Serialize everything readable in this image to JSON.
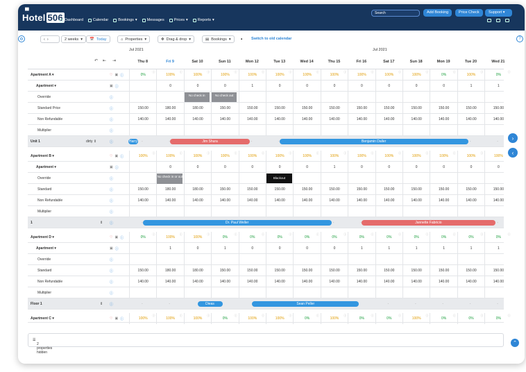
{
  "nav": {
    "logo_text": "Hotel",
    "logo_num": "506",
    "items": [
      "Dashboard",
      "Calendar",
      "Bookings",
      "Messages",
      "Prices",
      "Reports"
    ],
    "search_placeholder": "Search",
    "add_booking": "Add Booking",
    "price_check": "Price Check",
    "support": "Support"
  },
  "toolbar": {
    "weeks": "2 weeks",
    "today": "Today",
    "properties": "Properties",
    "drag": "Drag & drop",
    "bookings": "Bookings",
    "switch_link": "Switch to old calendar"
  },
  "months": [
    "Jul 2021",
    "Jul 2021"
  ],
  "days": [
    "Thu 8",
    "Fri 9",
    "Sat 10",
    "Sun 11",
    "Mon 12",
    "Tue 13",
    "Wed 14",
    "Thu 15",
    "Fri 16",
    "Sat 17",
    "Sun 18",
    "Mon 19",
    "Tue 20",
    "Wed 21"
  ],
  "apartmentA": {
    "title": "Apartment A",
    "occupancy": [
      "0%",
      "100%",
      "100%",
      "100%",
      "100%",
      "100%",
      "100%",
      "100%",
      "100%",
      "100%",
      "100%",
      "0%",
      "100%",
      "0%"
    ],
    "sub": "Apartment",
    "avail": [
      "",
      "0",
      "0",
      "0",
      "1",
      "0",
      "0",
      "0",
      "0",
      "0",
      "0",
      "0",
      "1",
      "1"
    ],
    "override_label": "Override",
    "override_tags": [
      "No check in",
      "No check out"
    ],
    "price_label": "Standard Price",
    "prices": [
      "150.00",
      "180.00",
      "180.00",
      "150.00",
      "150.00",
      "150.00",
      "150.00",
      "150.00",
      "150.00",
      "150.00",
      "150.00",
      "150.00",
      "150.00",
      "150.00"
    ],
    "nr_label": "Non Refundable",
    "nr": [
      "140.00",
      "140.00",
      "140.00",
      "140.00",
      "140.00",
      "140.00",
      "140.00",
      "140.00",
      "140.00",
      "140.00",
      "140.00",
      "140.00",
      "140.00",
      "140.00"
    ],
    "mult_label": "Multiplier",
    "unit_label": "Unit 1",
    "unit_status": "dirty",
    "bookings": [
      "Harry",
      "Jim Shura",
      "Benjamin Daller"
    ]
  },
  "apartmentB": {
    "title": "Apartment B",
    "occupancy": [
      "100%",
      "100%",
      "100%",
      "100%",
      "100%",
      "100%",
      "100%",
      "100%",
      "100%",
      "100%",
      "100%",
      "100%",
      "100%",
      "100%"
    ],
    "sub": "Apartment",
    "avail": [
      "",
      "0",
      "0",
      "0",
      "0",
      "0",
      "0",
      "1",
      "0",
      "0",
      "0",
      "0",
      "0",
      "0"
    ],
    "override_label": "Override",
    "override_tag": "No check in or out",
    "blackout": "Blackout",
    "price_label": "Standard",
    "prices": [
      "150.00",
      "180.00",
      "180.00",
      "150.00",
      "150.00",
      "150.00",
      "150.00",
      "150.00",
      "150.00",
      "150.00",
      "150.00",
      "150.00",
      "150.00",
      "150.00"
    ],
    "nr_label": "Non Refundable",
    "nr": [
      "140.00",
      "140.00",
      "140.00",
      "140.00",
      "140.00",
      "140.00",
      "140.00",
      "140.00",
      "140.00",
      "140.00",
      "140.00",
      "140.00",
      "140.00",
      "140.00"
    ],
    "mult_label": "Multiplier",
    "unit_label": "1",
    "bookings": [
      "Dr. Paul Weller",
      "Jannette Fabricio"
    ]
  },
  "apartmentD": {
    "title": "Apartment D",
    "occupancy": [
      "0%",
      "100%",
      "100%",
      "0%",
      "0%",
      "0%",
      "0%",
      "0%",
      "0%",
      "0%",
      "0%",
      "0%",
      "0%",
      "0%"
    ],
    "sub": "Apartment",
    "avail": [
      "",
      "1",
      "0",
      "1",
      "0",
      "0",
      "0",
      "0",
      "1",
      "1",
      "1",
      "1",
      "1",
      "1"
    ],
    "override_label": "Override",
    "price_label": "Standard",
    "prices": [
      "150.00",
      "180.00",
      "180.00",
      "150.00",
      "150.00",
      "150.00",
      "150.00",
      "150.00",
      "150.00",
      "150.00",
      "150.00",
      "150.00",
      "150.00",
      "150.00"
    ],
    "nr_label": "Non Refundable",
    "nr": [
      "140.00",
      "140.00",
      "140.00",
      "140.00",
      "140.00",
      "140.00",
      "140.00",
      "140.00",
      "140.00",
      "140.00",
      "140.00",
      "140.00",
      "140.00",
      "140.00"
    ],
    "mult_label": "Multiplier",
    "unit_label": "Floor 1",
    "bookings": [
      "Dieas",
      "Sean Peller"
    ]
  },
  "apartmentC": {
    "title": "Apartment C",
    "occupancy": [
      "100%",
      "100%",
      "100%",
      "0%",
      "100%",
      "100%",
      "0%",
      "100%",
      "0%",
      "0%",
      "100%",
      "0%",
      "0%",
      "0%"
    ]
  },
  "footer": "2 properties hidden",
  "colors": {
    "nav": "#17365d",
    "accent": "#2f86d6",
    "green": "#1a9e3c",
    "orange": "#e09b00",
    "red": "#e56b6b"
  }
}
